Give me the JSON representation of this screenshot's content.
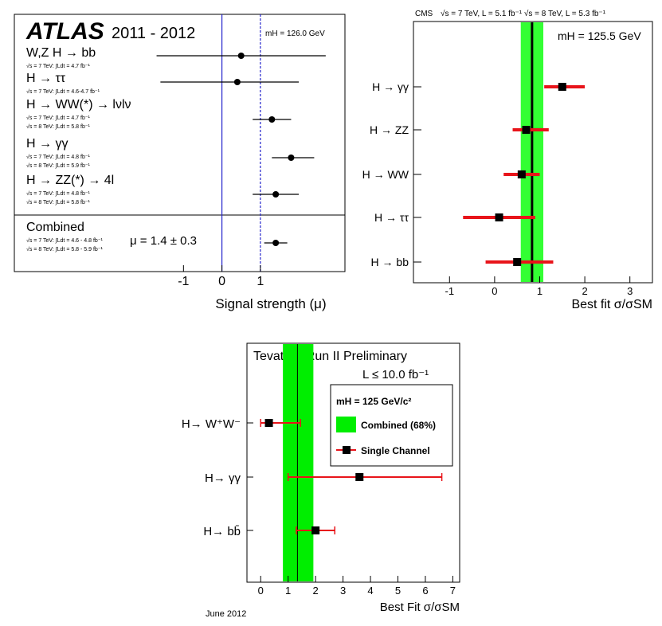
{
  "chart_data": [
    {
      "type": "errorbar",
      "title": "ATLAS",
      "subtitle": "2011 - 2012",
      "annotation": "mH = 126.0 GeV",
      "result_text": "μ = 1.4 ± 0.3",
      "x_label": "Signal strength (μ)",
      "categories": [
        "W,Z H → bb",
        "H → ττ",
        "H → WW(*) → lνlν",
        "H → γγ",
        "H → ZZ(*) → 4l",
        "Combined"
      ],
      "sublabels": [
        [
          "√s = 7 TeV: ∫Ldt = 4.7 fb⁻¹"
        ],
        [
          "√s = 7 TeV: ∫Ldt = 4.6-4.7 fb⁻¹"
        ],
        [
          "√s = 7 TeV: ∫Ldt = 4.7 fb⁻¹",
          "√s = 8 TeV: ∫Ldt = 5.8 fb⁻¹"
        ],
        [
          "√s = 7 TeV: ∫Ldt = 4.8 fb⁻¹",
          "√s = 8 TeV: ∫Ldt = 5.9 fb⁻¹"
        ],
        [
          "√s = 7 TeV: ∫Ldt = 4.8 fb⁻¹",
          "√s = 8 TeV: ∫Ldt = 5.8 fb⁻¹"
        ],
        [
          "√s = 7 TeV: ∫Ldt = 4.6 - 4.8 fb⁻¹",
          "√s = 8 TeV: ∫Ldt = 5.8 - 5.9 fb⁻¹"
        ]
      ],
      "values": [
        0.5,
        0.4,
        1.3,
        1.8,
        1.4,
        1.4
      ],
      "lower": [
        -1.7,
        -1.6,
        0.8,
        1.3,
        0.8,
        1.1
      ],
      "upper": [
        2.7,
        2.0,
        1.8,
        2.4,
        2.0,
        1.7
      ],
      "xlim": [
        -5.4,
        3.2
      ],
      "xticks": [
        -1,
        0,
        1
      ],
      "reference_lines": [
        0,
        1
      ],
      "marker": "circle",
      "color": "#000000",
      "error_color": "#000000",
      "label_color": "#2222ee",
      "line_color": "#2222cc"
    },
    {
      "type": "errorbar",
      "title": "CMS",
      "subtitle": "√s = 7 TeV, L = 5.1 fb⁻¹  √s = 8 TeV, L = 5.3 fb⁻¹",
      "annotation": "mH = 125.5 GeV",
      "x_label": "Best fit σ/σSM",
      "categories": [
        "H → γγ",
        "H → ZZ",
        "H → WW",
        "H → ττ",
        "H → bb"
      ],
      "values": [
        1.5,
        0.7,
        0.6,
        0.1,
        0.5
      ],
      "lower": [
        1.1,
        0.4,
        0.2,
        -0.7,
        -0.2
      ],
      "upper": [
        2.0,
        1.2,
        1.0,
        0.9,
        1.3
      ],
      "combined_value": 0.83,
      "combined_band": [
        0.58,
        1.08
      ],
      "xlim": [
        -1.8,
        3.5
      ],
      "xticks": [
        -1,
        0,
        1,
        2,
        3
      ],
      "marker": "square",
      "color": "#000000",
      "error_color": "#e8141a",
      "band_color": "#33ff33"
    },
    {
      "type": "errorbar",
      "title": "Tevatron Run II Preliminary",
      "subtitle": "L ≤ 10.0 fb⁻¹",
      "annotation": "June 2012",
      "x_label": "Best Fit σ/σSM",
      "categories": [
        "H→ W⁺W⁻",
        "H→ γγ",
        "H→ bb̄"
      ],
      "values": [
        0.3,
        3.6,
        2.0
      ],
      "lower": [
        0.0,
        1.0,
        1.3
      ],
      "upper": [
        1.45,
        6.6,
        2.7
      ],
      "combined_value": 1.34,
      "combined_band": [
        0.81,
        1.92
      ],
      "legend": {
        "title": "mH = 125 GeV/c²",
        "band": "Combined (68%)",
        "points": "Single Channel"
      },
      "xlim": [
        -0.5,
        7.25
      ],
      "xticks": [
        0,
        1,
        2,
        3,
        4,
        5,
        6,
        7
      ],
      "caps": true,
      "marker": "square",
      "color": "#000000",
      "error_color": "#e8141a",
      "band_color": "#00ee00"
    }
  ]
}
